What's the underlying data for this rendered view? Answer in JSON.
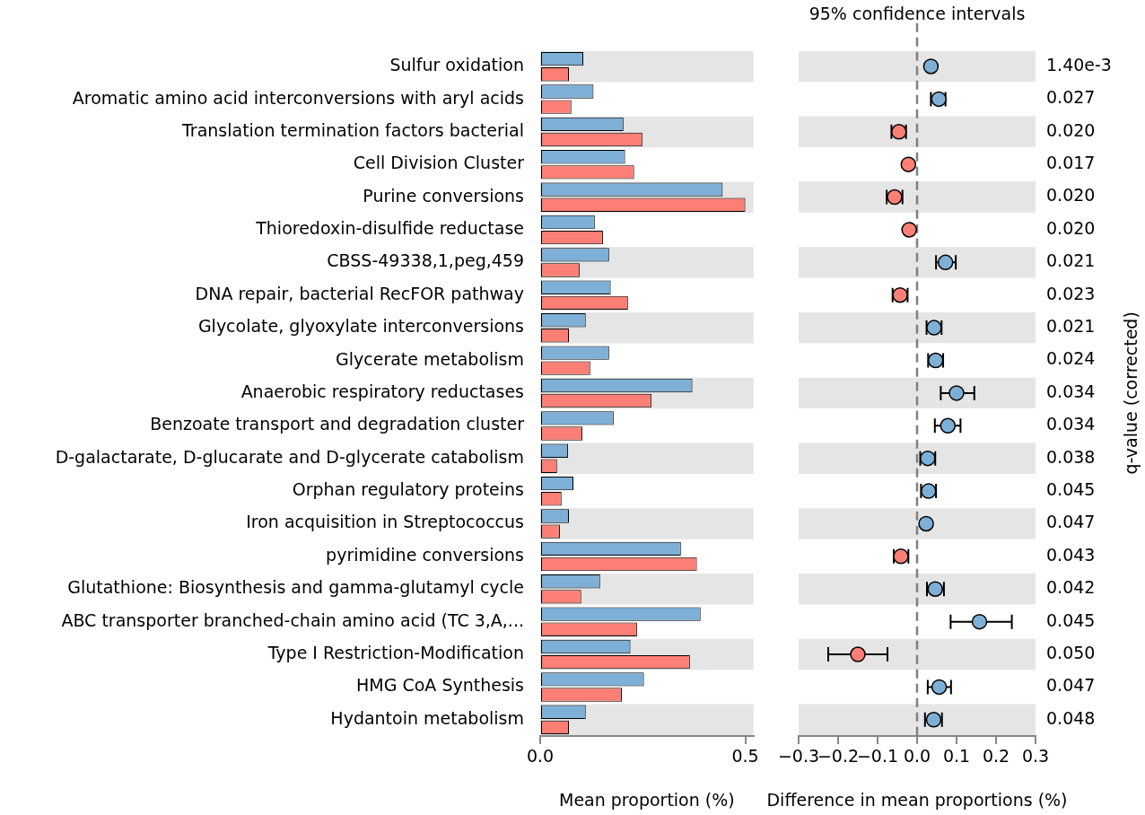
{
  "chart_data": [
    {
      "type": "bar",
      "orientation": "horizontal",
      "categories": [
        "Sulfur oxidation",
        "Aromatic amino acid interconversions with aryl acids",
        "Translation termination factors bacterial",
        "Cell Division Cluster",
        "Purine conversions",
        "Thioredoxin-disulfide reductase",
        "CBSS-49338,1,peg,459",
        "DNA repair, bacterial RecFOR pathway",
        "Glycolate, glyoxylate interconversions",
        "Glycerate metabolism",
        "Anaerobic respiratory reductases",
        "Benzoate transport and degradation cluster",
        "D-galactarate, D-glucarate and D-glycerate catabolism",
        "Orphan regulatory proteins",
        "Iron acquisition in Streptococcus",
        "pyrimidine conversions",
        "Glutathione: Biosynthesis and gamma-glutamyl cycle",
        "ABC transporter branched-chain amino acid (TC 3,A,...",
        "Type I Restriction-Modification",
        "HMG CoA Synthesis",
        "Hydantoin metabolism"
      ],
      "series": [
        {
          "color": "#7eafd6",
          "values": [
            0.105,
            0.13,
            0.203,
            0.207,
            0.445,
            0.133,
            0.168,
            0.172,
            0.111,
            0.168,
            0.371,
            0.179,
            0.068,
            0.081,
            0.07,
            0.343,
            0.146,
            0.391,
            0.22,
            0.253,
            0.111
          ]
        },
        {
          "color": "#fc7f76",
          "values": [
            0.07,
            0.076,
            0.249,
            0.229,
            0.5,
            0.153,
            0.096,
            0.214,
            0.07,
            0.122,
            0.271,
            0.103,
            0.041,
            0.052,
            0.048,
            0.382,
            0.1,
            0.236,
            0.365,
            0.199,
            0.07
          ]
        }
      ],
      "xlabel": "Mean proportion (%)",
      "xlim": [
        0,
        0.52
      ],
      "xticks": [
        {
          "value": 0,
          "label": "0.0"
        },
        {
          "value": 0.5,
          "label": "0.5"
        }
      ],
      "bands": [
        {
          "axis": "y",
          "from": "Sulfur oxidation",
          "to": "Sulfur oxidation",
          "color": "#e5e5e5"
        },
        {
          "axis": "y",
          "from": "Translation termination factors bacterial",
          "to": "Translation termination factors bacterial",
          "color": "#e5e5e5"
        },
        {
          "axis": "y",
          "from": "Purine conversions",
          "to": "Purine conversions",
          "color": "#e5e5e5"
        },
        {
          "axis": "y",
          "from": "CBSS-49338,1,peg,459",
          "to": "CBSS-49338,1,peg,459",
          "color": "#e5e5e5"
        },
        {
          "axis": "y",
          "from": "Glycolate, glyoxylate interconversions",
          "to": "Glycolate, glyoxylate interconversions",
          "color": "#e5e5e5"
        },
        {
          "axis": "y",
          "from": "Anaerobic respiratory reductases",
          "to": "Anaerobic respiratory reductases",
          "color": "#e5e5e5"
        },
        {
          "axis": "y",
          "from": "D-galactarate, D-glucarate and D-glycerate catabolism",
          "to": "D-galactarate, D-glucarate and D-glycerate catabolism",
          "color": "#e5e5e5"
        },
        {
          "axis": "y",
          "from": "Iron acquisition in Streptococcus",
          "to": "Iron acquisition in Streptococcus",
          "color": "#e5e5e5"
        },
        {
          "axis": "y",
          "from": "Glutathione: Biosynthesis and gamma-glutamyl cycle",
          "to": "Glutathione: Biosynthesis and gamma-glutamyl cycle",
          "color": "#e5e5e5"
        },
        {
          "axis": "y",
          "from": "Type I Restriction-Modification",
          "to": "Type I Restriction-Modification",
          "color": "#e5e5e5"
        },
        {
          "axis": "y",
          "from": "Hydantoin metabolism",
          "to": "Hydantoin metabolism",
          "color": "#e5e5e5"
        }
      ]
    },
    {
      "type": "scatter",
      "orientation": "horizontal",
      "title": "95% confidence intervals",
      "marker": "circle",
      "categories": [
        "Sulfur oxidation",
        "Aromatic amino acid interconversions with aryl acids",
        "Translation termination factors bacterial",
        "Cell Division Cluster",
        "Purine conversions",
        "Thioredoxin-disulfide reductase",
        "CBSS-49338,1,peg,459",
        "DNA repair, bacterial RecFOR pathway",
        "Glycolate, glyoxylate interconversions",
        "Glycerate metabolism",
        "Anaerobic respiratory reductases",
        "Benzoate transport and degradation cluster",
        "D-galactarate, D-glucarate and D-glycerate catabolism",
        "Orphan regulatory proteins",
        "Iron acquisition in Streptococcus",
        "pyrimidine conversions",
        "Glutathione: Biosynthesis and gamma-glutamyl cycle",
        "ABC transporter branched-chain amino acid (TC 3,A,...",
        "Type I Restriction-Modification",
        "HMG CoA Synthesis",
        "Hydantoin metabolism"
      ],
      "values": [
        0.035,
        0.055,
        -0.046,
        -0.022,
        -0.057,
        -0.02,
        0.072,
        -0.043,
        0.043,
        0.047,
        0.1,
        0.078,
        0.027,
        0.029,
        0.023,
        -0.041,
        0.046,
        0.158,
        -0.15,
        0.056,
        0.042
      ],
      "colors": [
        "#7eafd6",
        "#7eafd6",
        "#fc7f76",
        "#fc7f76",
        "#fc7f76",
        "#fc7f76",
        "#7eafd6",
        "#fc7f76",
        "#7eafd6",
        "#7eafd6",
        "#7eafd6",
        "#7eafd6",
        "#7eafd6",
        "#7eafd6",
        "#7eafd6",
        "#fc7f76",
        "#7eafd6",
        "#7eafd6",
        "#fc7f76",
        "#7eafd6",
        "#7eafd6"
      ],
      "errors": [
        null,
        [
          0.035,
          0.072
        ],
        [
          -0.065,
          -0.028
        ],
        null,
        [
          -0.077,
          -0.037
        ],
        null,
        [
          0.048,
          0.098
        ],
        [
          -0.062,
          -0.024
        ],
        [
          0.024,
          0.062
        ],
        [
          0.028,
          0.066
        ],
        [
          0.06,
          0.145
        ],
        [
          0.045,
          0.11
        ],
        [
          0.008,
          0.046
        ],
        [
          0.01,
          0.048
        ],
        null,
        [
          -0.059,
          -0.022
        ],
        [
          0.025,
          0.068
        ],
        [
          0.085,
          0.24
        ],
        [
          -0.225,
          -0.075
        ],
        [
          0.027,
          0.086
        ],
        [
          0.02,
          0.063
        ]
      ],
      "xlabel": "Difference in mean proportions (%)",
      "y2label": "q-value (corrected)",
      "xlim": [
        -0.3,
        0.3
      ],
      "xticks": [
        {
          "value": -0.3,
          "label": "−0.3"
        },
        {
          "value": -0.2,
          "label": "−0.2"
        },
        {
          "value": -0.1,
          "label": "−0.1"
        },
        {
          "value": 0,
          "label": "0.0"
        },
        0.1,
        0.2,
        0.3
      ],
      "tick_labels": "x",
      "ref_lines": [
        {
          "axis": "x",
          "value": 0,
          "color": "#808080",
          "line_style": "dashed"
        }
      ],
      "bands": [
        {
          "axis": "y",
          "from": "Sulfur oxidation",
          "to": "Sulfur oxidation",
          "color": "#e5e5e5"
        },
        {
          "axis": "y",
          "from": "Translation termination factors bacterial",
          "to": "Translation termination factors bacterial",
          "color": "#e5e5e5"
        },
        {
          "axis": "y",
          "from": "Purine conversions",
          "to": "Purine conversions",
          "color": "#e5e5e5"
        },
        {
          "axis": "y",
          "from": "CBSS-49338,1,peg,459",
          "to": "CBSS-49338,1,peg,459",
          "color": "#e5e5e5"
        },
        {
          "axis": "y",
          "from": "Glycolate, glyoxylate interconversions",
          "to": "Glycolate, glyoxylate interconversions",
          "color": "#e5e5e5"
        },
        {
          "axis": "y",
          "from": "Anaerobic respiratory reductases",
          "to": "Anaerobic respiratory reductases",
          "color": "#e5e5e5"
        },
        {
          "axis": "y",
          "from": "D-galactarate, D-glucarate and D-glycerate catabolism",
          "to": "D-galactarate, D-glucarate and D-glycerate catabolism",
          "color": "#e5e5e5"
        },
        {
          "axis": "y",
          "from": "Iron acquisition in Streptococcus",
          "to": "Iron acquisition in Streptococcus",
          "color": "#e5e5e5"
        },
        {
          "axis": "y",
          "from": "Glutathione: Biosynthesis and gamma-glutamyl cycle",
          "to": "Glutathione: Biosynthesis and gamma-glutamyl cycle",
          "color": "#e5e5e5"
        },
        {
          "axis": "y",
          "from": "Type I Restriction-Modification",
          "to": "Type I Restriction-Modification",
          "color": "#e5e5e5"
        },
        {
          "axis": "y",
          "from": "Hydantoin metabolism",
          "to": "Hydantoin metabolism",
          "color": "#e5e5e5"
        }
      ],
      "annotations": [
        "1.40e-3",
        "0.027",
        "0.020",
        "0.017",
        "0.020",
        "0.020",
        "0.021",
        "0.023",
        "0.021",
        "0.024",
        "0.034",
        "0.034",
        "0.038",
        "0.045",
        "0.047",
        "0.043",
        "0.042",
        "0.045",
        "0.050",
        "0.047",
        "0.048"
      ]
    }
  ]
}
